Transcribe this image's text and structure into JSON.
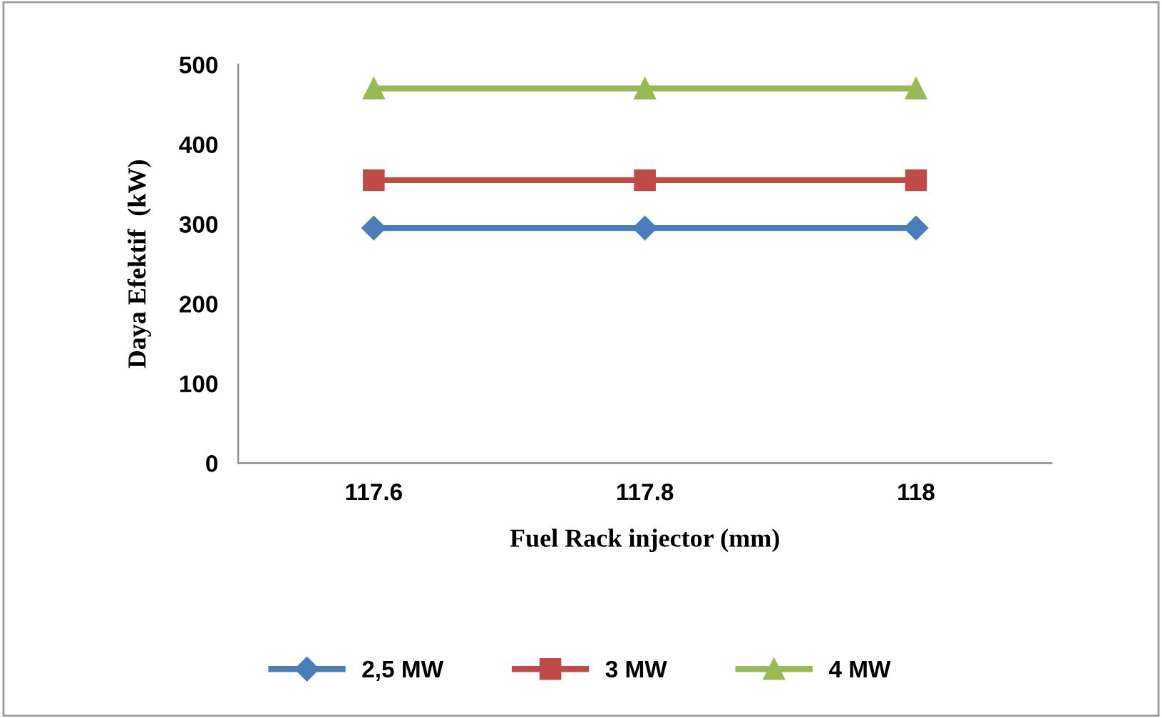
{
  "chart_data": {
    "type": "line",
    "xlabel": "Fuel Rack injector (mm)",
    "ylabel": "Daya Efektif  (kW)",
    "categories": [
      "117.6",
      "117.8",
      "118"
    ],
    "series": [
      {
        "name": "2,5 MW",
        "color": "#4a7ebb",
        "values": [
          295,
          295,
          295
        ],
        "marker": "diamond"
      },
      {
        "name": "3 MW",
        "color": "#be4b48",
        "values": [
          355,
          355,
          355
        ],
        "marker": "square"
      },
      {
        "name": "4 MW",
        "color": "#98b954",
        "values": [
          470,
          470,
          470
        ],
        "marker": "triangle"
      }
    ],
    "ylim": [
      0,
      500
    ],
    "yticks": [
      0,
      100,
      200,
      300,
      400,
      500
    ],
    "grid": false,
    "legend": "bottom",
    "line_style": "solid"
  }
}
